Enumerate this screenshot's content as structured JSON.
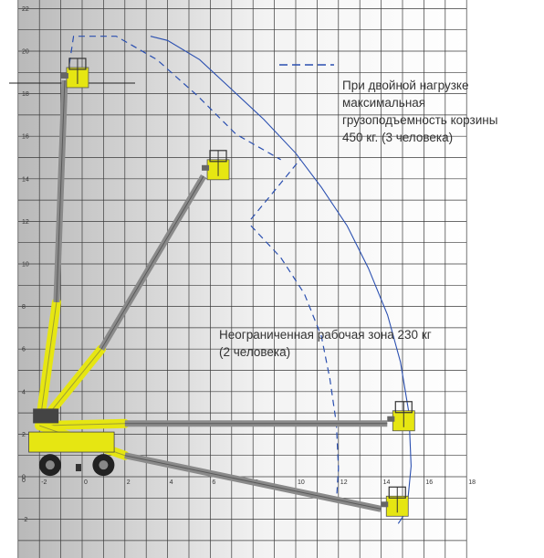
{
  "axes": {
    "x_ticks": [
      "-2",
      "0",
      "2",
      "4",
      "6",
      "8",
      "10",
      "12",
      "14",
      "16",
      "18"
    ],
    "y_ticks": [
      "22",
      "20",
      "18",
      "16",
      "14",
      "12",
      "10",
      "8",
      "6",
      "4",
      "2",
      "0",
      "-2"
    ]
  },
  "legend": {
    "double_load_text": "При двойной нагрузке\nмаксимальная\nгрузоподъемность корзины\n450 кг. (3 человека)",
    "unrestricted_text": "Неограниченная рабочая зона 230 кг\n(2 человека)"
  },
  "colors": {
    "boom_yellow": "#e6e612",
    "boom_grey": "#8a8a8a",
    "envelope_blue": "#2a4fb0",
    "grid": "#3a3a3a",
    "background_grey": "#bfbfbf"
  },
  "chart_data": {
    "type": "diagram",
    "x_range": [
      -3,
      18
    ],
    "y_range": [
      -3.5,
      22
    ],
    "booms": [
      {
        "name": "vertical-reach",
        "platform": [
          -0.9,
          18.8
        ]
      },
      {
        "name": "intermediate-reach",
        "platform": [
          5.6,
          14.3
        ]
      },
      {
        "name": "horizontal-reach",
        "platform": [
          14.2,
          2.5
        ]
      },
      {
        "name": "below-grade-reach",
        "platform": [
          13.9,
          -1.6
        ]
      }
    ]
  }
}
